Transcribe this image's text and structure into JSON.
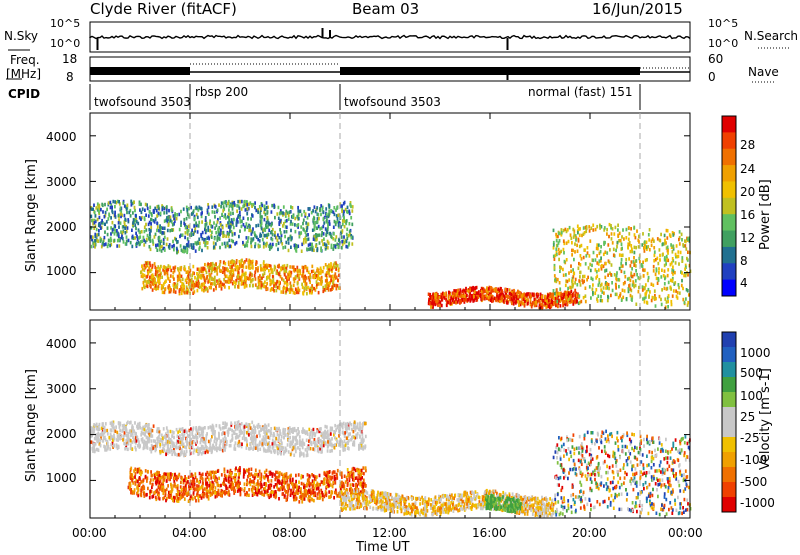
{
  "header": {
    "radar": "Clyde River (fitACF)",
    "beam": "Beam 03",
    "date": "16/Jun/2015"
  },
  "noise_panel": {
    "left_label": "N.Sky",
    "right_label": "N.Search",
    "left_ticks": [
      "10^5",
      "10^0"
    ],
    "right_ticks": [
      "10^5",
      "10^0"
    ]
  },
  "freq_panel": {
    "left_label": "Freq.",
    "left_unit": "[MHz]",
    "right_label": "Nave",
    "left_ticks": [
      "18",
      "8"
    ],
    "right_ticks": [
      "60",
      "0"
    ]
  },
  "cpid": {
    "label": "CPID",
    "segments": [
      {
        "name": "twofsound 3503",
        "start_h": 0.0,
        "end_h": 4.0
      },
      {
        "name": "rbsp 200",
        "start_h": 4.0,
        "end_h": 10.0
      },
      {
        "name": "twofsound 3503",
        "start_h": 10.0,
        "end_h": 18.0
      },
      {
        "name": "normal (fast) 151",
        "start_h": 18.0,
        "end_h": 22.0
      }
    ],
    "dividers_h": [
      4.0,
      10.0,
      22.0
    ]
  },
  "chart_data": [
    {
      "type": "heatmap",
      "name": "power",
      "ylabel": "Slant Range [km]",
      "yticks": [
        1000,
        2000,
        3000,
        4000
      ],
      "ylim": [
        180,
        4500
      ],
      "xlim_h": [
        0,
        24
      ],
      "colorbar": {
        "label": "Power [dB]",
        "ticks": [
          "28",
          "24",
          "20",
          "16",
          "12",
          "8",
          "4"
        ],
        "range": [
          0,
          32
        ],
        "colors": [
          "#0000ff",
          "#2040c0",
          "#207090",
          "#40a060",
          "#60c060",
          "#c0c020",
          "#f0c000",
          "#f0a000",
          "#f07000",
          "#f04000",
          "#e00000"
        ]
      },
      "features": [
        {
          "desc": "F-region band",
          "start_h": 0.0,
          "end_h": 10.5,
          "range_km": [
            1500,
            2500
          ],
          "dominant_db": 10
        },
        {
          "desc": "E-region band",
          "start_h": 2.0,
          "end_h": 10.0,
          "range_km": [
            600,
            1200
          ],
          "dominant_db": 22
        },
        {
          "desc": "near-range strong echoes",
          "start_h": 13.5,
          "end_h": 19.5,
          "range_km": [
            300,
            600
          ],
          "dominant_db": 28
        },
        {
          "desc": "late scatter",
          "start_h": 18.5,
          "end_h": 24.0,
          "range_km": [
            300,
            2000
          ],
          "dominant_db": 18
        }
      ]
    },
    {
      "type": "heatmap",
      "name": "velocity",
      "ylabel": "Slant Range [km]",
      "yticks": [
        1000,
        2000,
        3000,
        4000
      ],
      "ylim": [
        180,
        4500
      ],
      "xlim_h": [
        0,
        24
      ],
      "colorbar": {
        "label": "Velocity [m s-1]",
        "ticks": [
          "1000",
          "500",
          "100",
          "25",
          "-25",
          "-100",
          "-500",
          "-1000"
        ],
        "colors": [
          "#e00000",
          "#f04000",
          "#f07000",
          "#f0a000",
          "#f0c000",
          "#c8c8c8",
          "#c8c8c8",
          "#80c040",
          "#40a040",
          "#2090a0",
          "#2060c0",
          "#2040b0"
        ]
      },
      "features": [
        {
          "desc": "F-region grey (ground scatter)",
          "start_h": 0.0,
          "end_h": 11.0,
          "range_km": [
            1600,
            2200
          ],
          "dominant_ms": 0
        },
        {
          "desc": "E-region band",
          "start_h": 1.5,
          "end_h": 11.0,
          "range_km": [
            600,
            1200
          ],
          "dominant_ms": -300
        },
        {
          "desc": "near-range mixed",
          "start_h": 10.0,
          "end_h": 18.5,
          "range_km": [
            300,
            700
          ],
          "dominant_ms": -80
        },
        {
          "desc": "green patch",
          "start_h": 15.8,
          "end_h": 17.2,
          "range_km": [
            300,
            600
          ],
          "dominant_ms": 100
        },
        {
          "desc": "late blue/red scatter",
          "start_h": 18.5,
          "end_h": 24.0,
          "range_km": [
            300,
            2000
          ],
          "dominant_ms": 200
        }
      ]
    }
  ],
  "time_axis": {
    "ticks": [
      "00:00",
      "04:00",
      "08:00",
      "12:00",
      "16:00",
      "20:00",
      "00:00"
    ],
    "label": "Time UT"
  },
  "colors": {
    "frame": "#000000",
    "dashed": "#aaaaaa"
  }
}
